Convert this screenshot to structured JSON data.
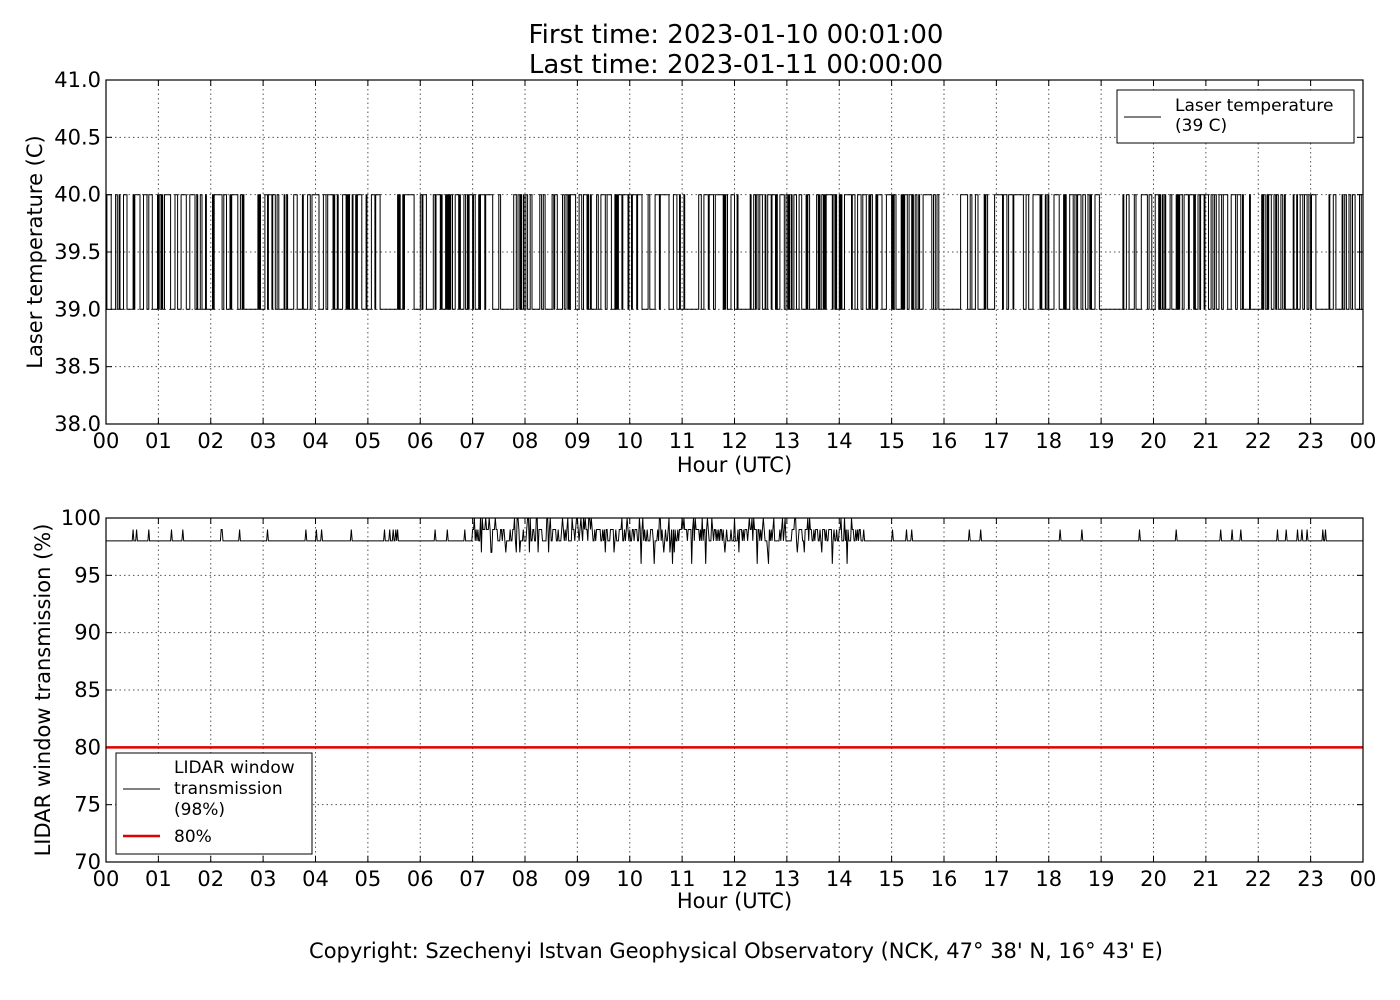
{
  "figure": {
    "title_line1": "First time: 2023-01-10 00:01:00",
    "title_line2": "Last time: 2023-01-11 00:00:00",
    "copyright": "Copyright: Szechenyi Istvan Geophysical Observatory (NCK, 47° 38' N, 16° 43' E)"
  },
  "chart_data": [
    {
      "type": "line",
      "xlabel": "Hour (UTC)",
      "ylabel": "Laser temperature (C)",
      "xlim": [
        0,
        24
      ],
      "ylim": [
        38.0,
        41.0
      ],
      "x_ticks": [
        "00",
        "01",
        "02",
        "03",
        "04",
        "05",
        "06",
        "07",
        "08",
        "09",
        "10",
        "11",
        "12",
        "13",
        "14",
        "15",
        "16",
        "17",
        "18",
        "19",
        "20",
        "21",
        "22",
        "23",
        "00"
      ],
      "y_ticks": [
        "38.0",
        "38.5",
        "39.0",
        "39.5",
        "40.0",
        "40.5",
        "41.0"
      ],
      "grid": true,
      "legend_position": "upper-right",
      "series": [
        {
          "name": "Laser temperature (39 C)",
          "name_lines": [
            "Laser temperature",
            "(39 C)"
          ],
          "color": "#000000",
          "low": 39.0,
          "high": 40.0,
          "note_behavior": "rapid switching between 39.0 and 40.0 throughout the day",
          "flat_segments_hours": [
            [
              2.62,
              2.85
            ],
            [
              5.22,
              5.42
            ],
            [
              11.05,
              11.25
            ],
            [
              16.0,
              16.3
            ],
            [
              19.1,
              19.4
            ],
            [
              21.85,
              22.05
            ],
            [
              23.1,
              23.3
            ]
          ]
        }
      ]
    },
    {
      "type": "line",
      "xlabel": "Hour (UTC)",
      "ylabel": "LIDAR window transmission (%)",
      "xlim": [
        0,
        24
      ],
      "ylim": [
        70,
        100
      ],
      "x_ticks": [
        "00",
        "01",
        "02",
        "03",
        "04",
        "05",
        "06",
        "07",
        "08",
        "09",
        "10",
        "11",
        "12",
        "13",
        "14",
        "15",
        "16",
        "17",
        "18",
        "19",
        "20",
        "21",
        "22",
        "23",
        "00"
      ],
      "y_ticks": [
        "70",
        "75",
        "80",
        "85",
        "90",
        "95",
        "100"
      ],
      "grid": true,
      "legend_position": "lower-left",
      "series": [
        {
          "name": "LIDAR window transmission (98%)",
          "name_lines": [
            "LIDAR window",
            "transmission",
            "(98%)"
          ],
          "color": "#000000",
          "baseline": 98,
          "range": [
            96,
            100
          ],
          "noisy_hours": [
            7.0,
            14.5
          ]
        },
        {
          "name": "80%",
          "name_lines": [
            "80%"
          ],
          "color": "#e00000",
          "value": 80
        }
      ]
    }
  ]
}
